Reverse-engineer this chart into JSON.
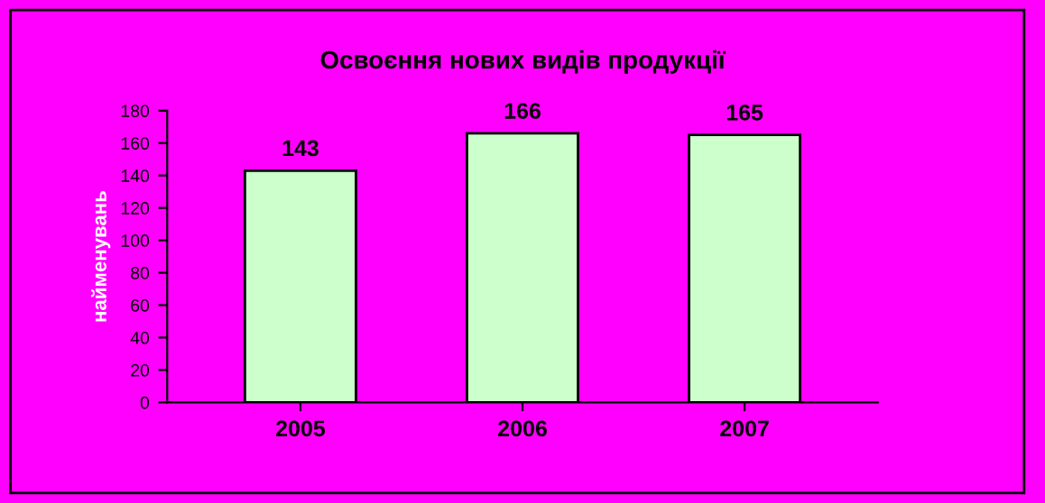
{
  "chart_data": {
    "type": "bar",
    "title": "Освоєння нових видів продукції",
    "ylabel": "найменувань",
    "categories": [
      "2005",
      "2006",
      "2007"
    ],
    "values": [
      143,
      166,
      165
    ],
    "color": "#ccffcc",
    "ylim": [
      0,
      180
    ],
    "yticks": [
      0,
      20,
      40,
      60,
      80,
      100,
      120,
      140,
      160,
      180
    ],
    "data_labels": true,
    "grid": false
  }
}
